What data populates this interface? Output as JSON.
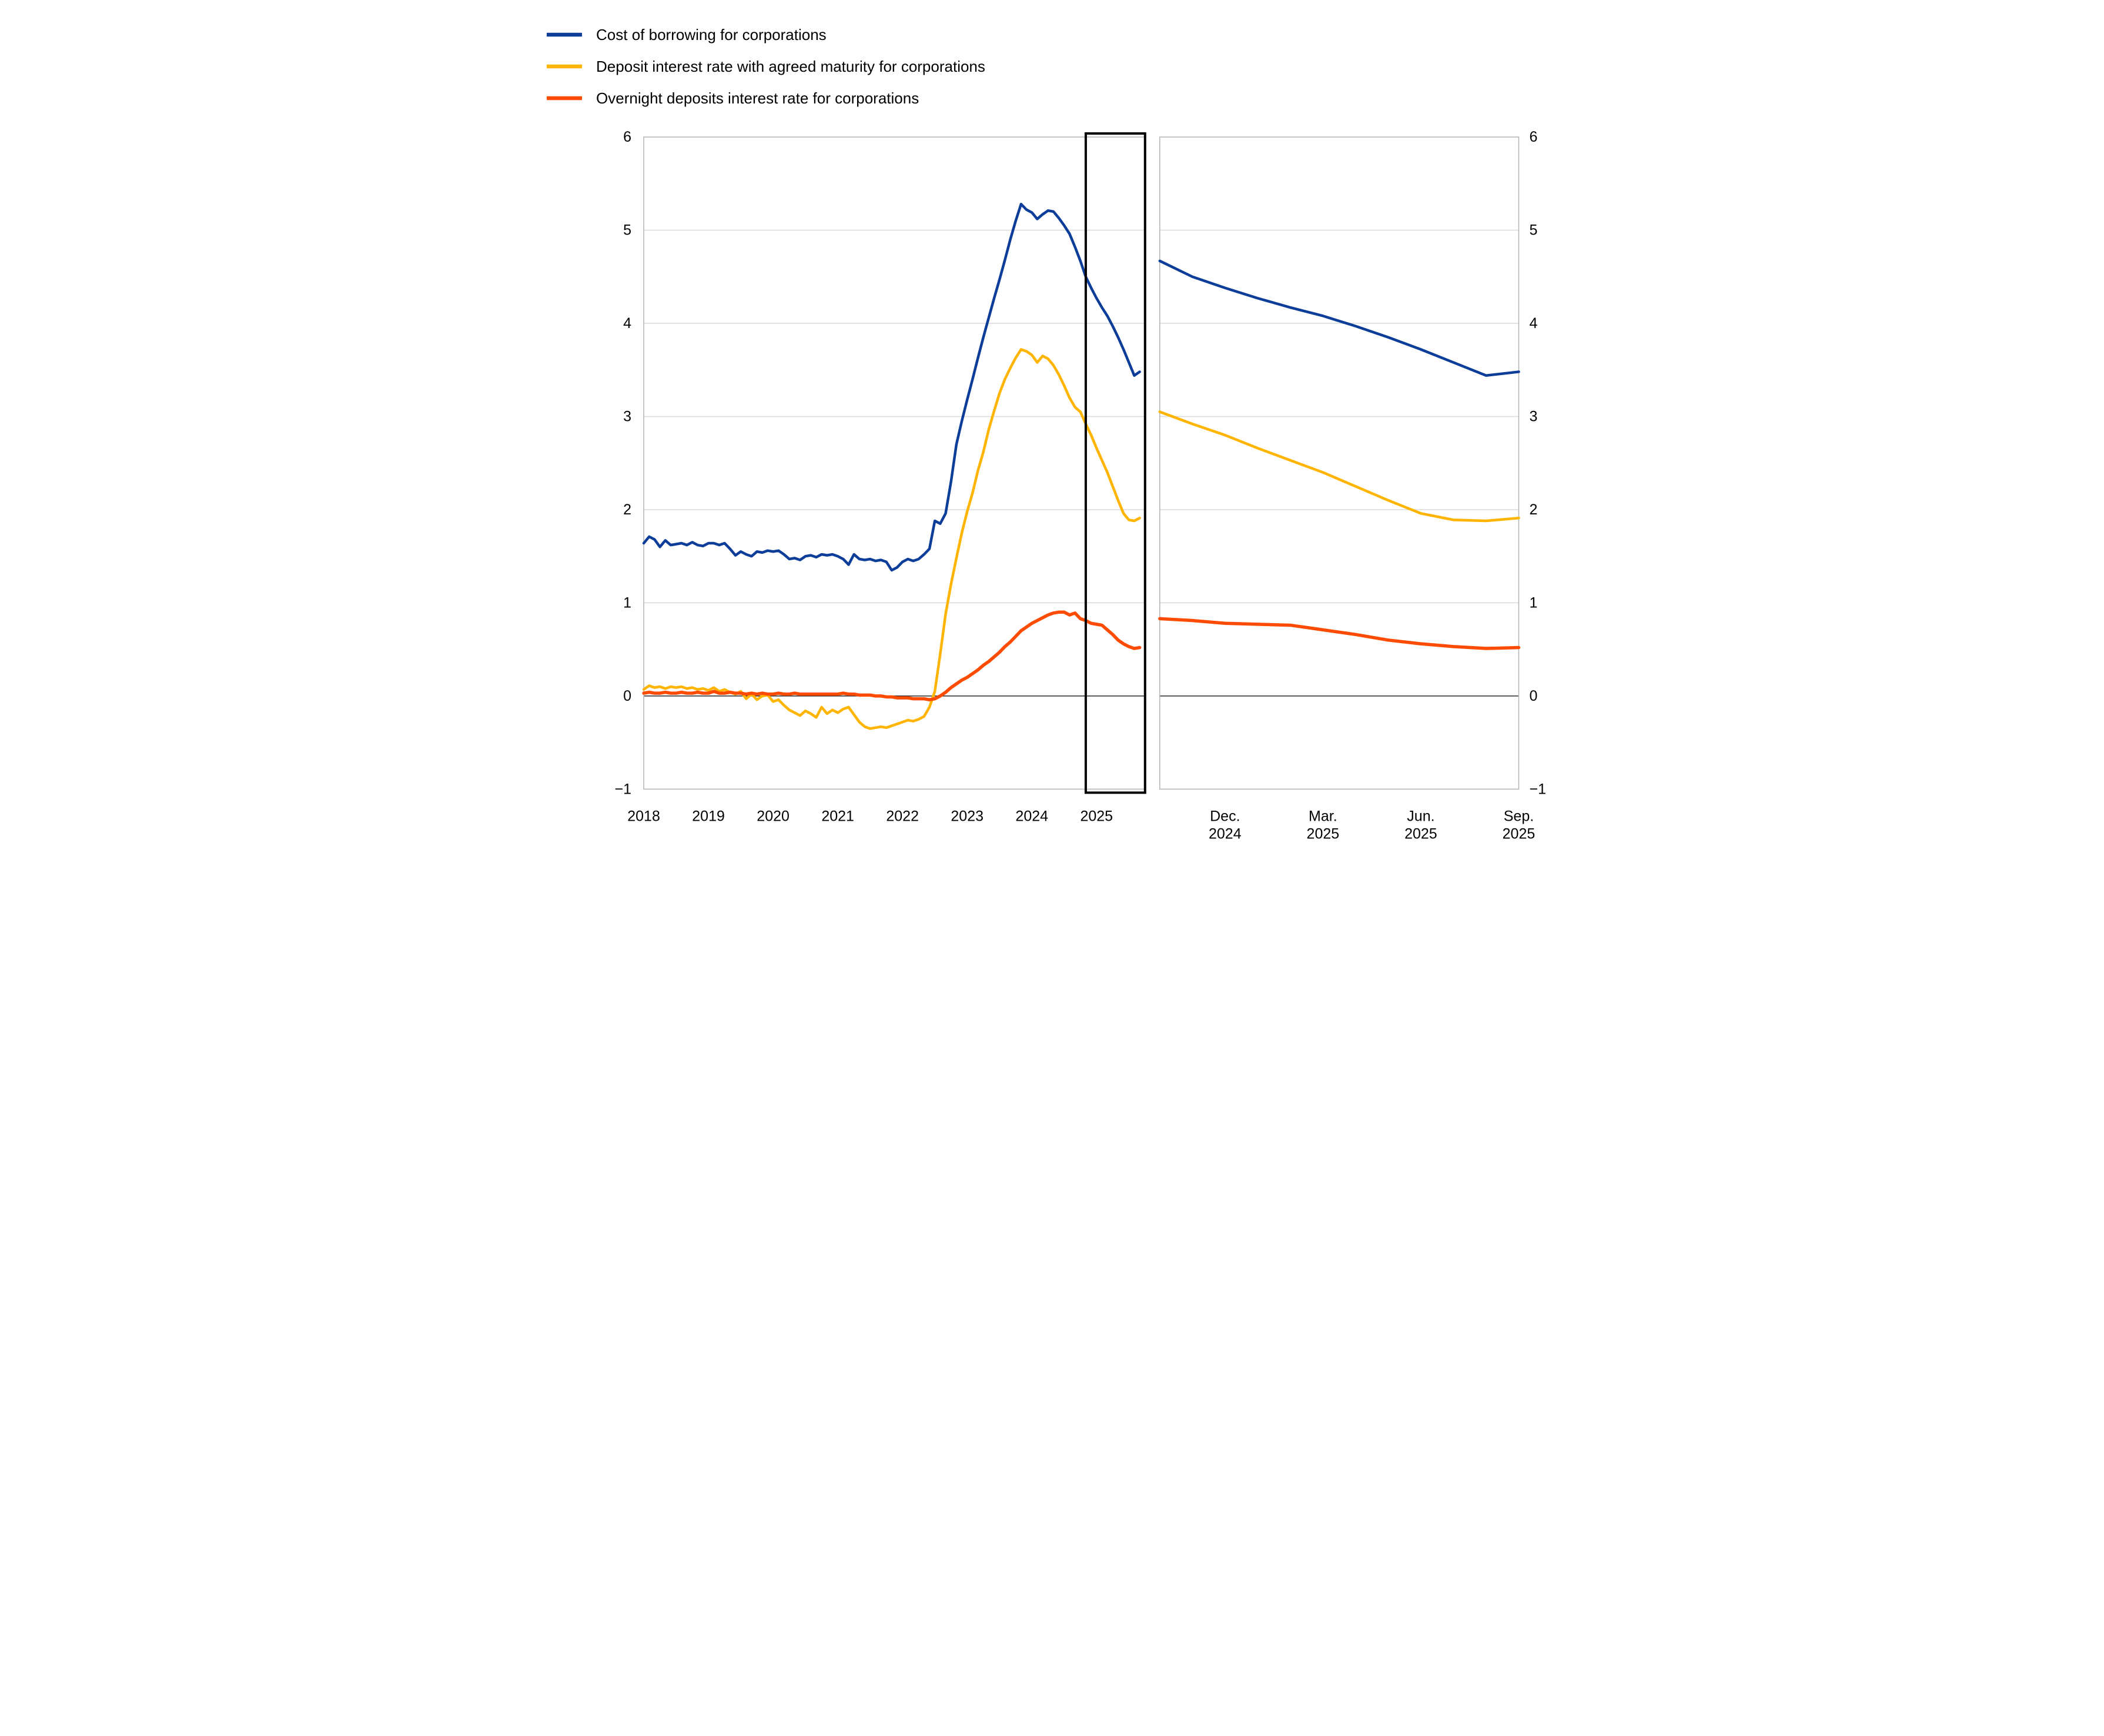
{
  "figure": {
    "description": "Two-panel line chart of euro-area corporate interest rates, 2018 to 2025, with zoom panel for Oct 2024 to Sep 2025",
    "background": "#ffffff",
    "grid_color": "#d9d9d9",
    "border_color": "#b3b3b3",
    "zero_line_color": "#262626",
    "highlight_box_color": "#000000"
  },
  "legend": {
    "items": [
      {
        "label": "Cost of borrowing for corporations",
        "color": "#0B3D99"
      },
      {
        "label": "Deposit interest rate with agreed maturity for corporations",
        "color": "#FFB400"
      },
      {
        "label": "Overnight deposits interest rate for corporations",
        "color": "#FF4B00"
      }
    ]
  },
  "y_axis": {
    "min": -1,
    "max": 6,
    "ticks": [
      6,
      5,
      4,
      3,
      2,
      1,
      0,
      -1
    ],
    "tick_labels": [
      "6",
      "5",
      "4",
      "3",
      "2",
      "1",
      "0",
      "−1"
    ]
  },
  "chart_data": [
    {
      "type": "line",
      "panel": "main",
      "title": "",
      "xlabel": "",
      "ylabel": "",
      "ylim": [
        -1,
        6
      ],
      "grid": true,
      "legend_position": "top-left",
      "x_start": "2018-01",
      "x_frequency": "monthly",
      "x_ticks": [
        {
          "label": "2018",
          "month": 0
        },
        {
          "label": "2019",
          "month": 12
        },
        {
          "label": "2020",
          "month": 24
        },
        {
          "label": "2021",
          "month": 36
        },
        {
          "label": "2022",
          "month": 48
        },
        {
          "label": "2023",
          "month": 60
        },
        {
          "label": "2024",
          "month": 72
        },
        {
          "label": "2025",
          "month": 84
        }
      ],
      "highlight_box": {
        "start_month": 82,
        "end_month": 93
      },
      "series": [
        {
          "name": "Cost of borrowing for corporations",
          "color": "#0B3D99",
          "width": 9,
          "values": [
            1.64,
            1.71,
            1.68,
            1.6,
            1.67,
            1.62,
            1.63,
            1.64,
            1.62,
            1.65,
            1.62,
            1.61,
            1.64,
            1.64,
            1.62,
            1.64,
            1.58,
            1.51,
            1.55,
            1.52,
            1.5,
            1.55,
            1.54,
            1.56,
            1.55,
            1.56,
            1.52,
            1.47,
            1.48,
            1.46,
            1.5,
            1.51,
            1.49,
            1.52,
            1.51,
            1.52,
            1.5,
            1.47,
            1.41,
            1.52,
            1.47,
            1.46,
            1.47,
            1.45,
            1.46,
            1.44,
            1.35,
            1.38,
            1.44,
            1.47,
            1.45,
            1.47,
            1.52,
            1.58,
            1.88,
            1.85,
            1.96,
            2.3,
            2.7,
            2.95,
            3.18,
            3.4,
            3.63,
            3.85,
            4.06,
            4.27,
            4.47,
            4.68,
            4.9,
            5.1,
            5.28,
            5.22,
            5.19,
            5.12,
            5.17,
            5.21,
            5.2,
            5.13,
            5.05,
            4.96,
            4.82,
            4.67,
            4.5,
            4.38,
            4.27,
            4.17,
            4.08,
            3.97,
            3.85,
            3.72,
            3.58,
            3.44,
            3.48
          ]
        },
        {
          "name": "Deposit interest rate with agreed maturity for corporations",
          "color": "#FFB400",
          "width": 9,
          "values": [
            0.07,
            0.11,
            0.09,
            0.1,
            0.08,
            0.1,
            0.09,
            0.1,
            0.08,
            0.09,
            0.07,
            0.08,
            0.06,
            0.09,
            0.05,
            0.07,
            0.04,
            0.02,
            0.05,
            -0.03,
            0.02,
            -0.04,
            0.0,
            0.01,
            -0.06,
            -0.04,
            -0.1,
            -0.15,
            -0.18,
            -0.21,
            -0.16,
            -0.19,
            -0.23,
            -0.12,
            -0.19,
            -0.15,
            -0.18,
            -0.14,
            -0.12,
            -0.2,
            -0.28,
            -0.33,
            -0.35,
            -0.34,
            -0.33,
            -0.34,
            -0.32,
            -0.3,
            -0.28,
            -0.26,
            -0.27,
            -0.25,
            -0.22,
            -0.12,
            0.05,
            0.45,
            0.88,
            1.2,
            1.48,
            1.75,
            1.98,
            2.18,
            2.42,
            2.62,
            2.86,
            3.06,
            3.25,
            3.4,
            3.52,
            3.63,
            3.72,
            3.7,
            3.66,
            3.58,
            3.65,
            3.62,
            3.55,
            3.45,
            3.33,
            3.2,
            3.1,
            3.05,
            2.92,
            2.8,
            2.66,
            2.53,
            2.4,
            2.25,
            2.1,
            1.96,
            1.89,
            1.88,
            1.91
          ]
        },
        {
          "name": "Overnight deposits interest rate for corporations",
          "color": "#FF4B00",
          "width": 11,
          "values": [
            0.03,
            0.04,
            0.03,
            0.03,
            0.04,
            0.03,
            0.03,
            0.04,
            0.03,
            0.03,
            0.04,
            0.03,
            0.03,
            0.05,
            0.03,
            0.03,
            0.04,
            0.03,
            0.03,
            0.02,
            0.03,
            0.02,
            0.03,
            0.02,
            0.02,
            0.03,
            0.02,
            0.02,
            0.03,
            0.02,
            0.02,
            0.02,
            0.02,
            0.02,
            0.02,
            0.02,
            0.02,
            0.03,
            0.02,
            0.02,
            0.01,
            0.01,
            0.01,
            0.0,
            0.0,
            -0.01,
            -0.01,
            -0.02,
            -0.02,
            -0.02,
            -0.03,
            -0.03,
            -0.03,
            -0.04,
            -0.03,
            0.0,
            0.04,
            0.09,
            0.13,
            0.17,
            0.2,
            0.24,
            0.28,
            0.33,
            0.37,
            0.42,
            0.47,
            0.53,
            0.58,
            0.64,
            0.7,
            0.74,
            0.78,
            0.81,
            0.84,
            0.87,
            0.89,
            0.9,
            0.9,
            0.87,
            0.89,
            0.83,
            0.81,
            0.78,
            0.77,
            0.76,
            0.71,
            0.66,
            0.6,
            0.56,
            0.53,
            0.51,
            0.52
          ]
        }
      ]
    },
    {
      "type": "line",
      "panel": "zoom",
      "title": "",
      "xlabel": "",
      "ylabel": "",
      "ylim": [
        -1,
        6
      ],
      "grid": true,
      "x_start": "2024-10",
      "x_frequency": "monthly",
      "x_ticks": [
        {
          "label": "Dec.",
          "sub": "2024",
          "month": 2
        },
        {
          "label": "Mar.",
          "sub": "2025",
          "month": 5
        },
        {
          "label": "Jun.",
          "sub": "2025",
          "month": 8
        },
        {
          "label": "Sep.",
          "sub": "2025",
          "month": 11
        }
      ],
      "series": [
        {
          "name": "Cost of borrowing for corporations",
          "color": "#0B3D99",
          "width": 9,
          "values": [
            4.67,
            4.5,
            4.38,
            4.27,
            4.17,
            4.08,
            3.97,
            3.85,
            3.72,
            3.58,
            3.44,
            3.48
          ]
        },
        {
          "name": "Deposit interest rate with agreed maturity for corporations",
          "color": "#FFB400",
          "width": 9,
          "values": [
            3.05,
            2.92,
            2.8,
            2.66,
            2.53,
            2.4,
            2.25,
            2.1,
            1.96,
            1.89,
            1.88,
            1.91
          ]
        },
        {
          "name": "Overnight deposits interest rate for corporations",
          "color": "#FF4B00",
          "width": 11,
          "values": [
            0.83,
            0.81,
            0.78,
            0.77,
            0.76,
            0.71,
            0.66,
            0.6,
            0.56,
            0.53,
            0.51,
            0.52
          ]
        }
      ]
    }
  ]
}
